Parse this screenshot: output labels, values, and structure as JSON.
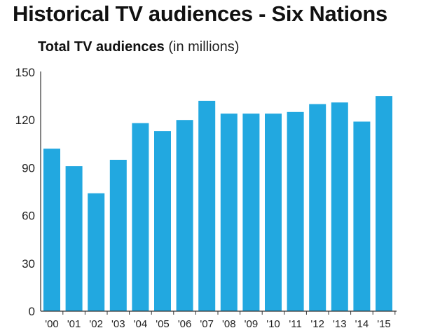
{
  "title": "Historical TV audiences - Six Nations",
  "subtitle": {
    "bold": "Total TV audiences",
    "light": "(in millions)"
  },
  "colors": {
    "bar": "#22a8e0",
    "axis": "#333333",
    "text": "#111111"
  },
  "chart_data": {
    "type": "bar",
    "title": "Total TV audiences (in millions)",
    "xlabel": "",
    "ylabel": "",
    "categories": [
      "'00",
      "'01",
      "'02",
      "'03",
      "'04",
      "'05",
      "'06",
      "'07",
      "'08",
      "'09",
      "'10",
      "'11",
      "'12",
      "'13",
      "'14",
      "'15"
    ],
    "values": [
      102,
      91,
      74,
      95,
      118,
      113,
      120,
      132,
      124,
      124,
      124,
      125,
      130,
      131,
      119,
      135
    ],
    "ylim": [
      0,
      150
    ],
    "yticks": [
      0,
      30,
      60,
      90,
      120,
      150
    ],
    "grid": false,
    "legend": "none"
  }
}
